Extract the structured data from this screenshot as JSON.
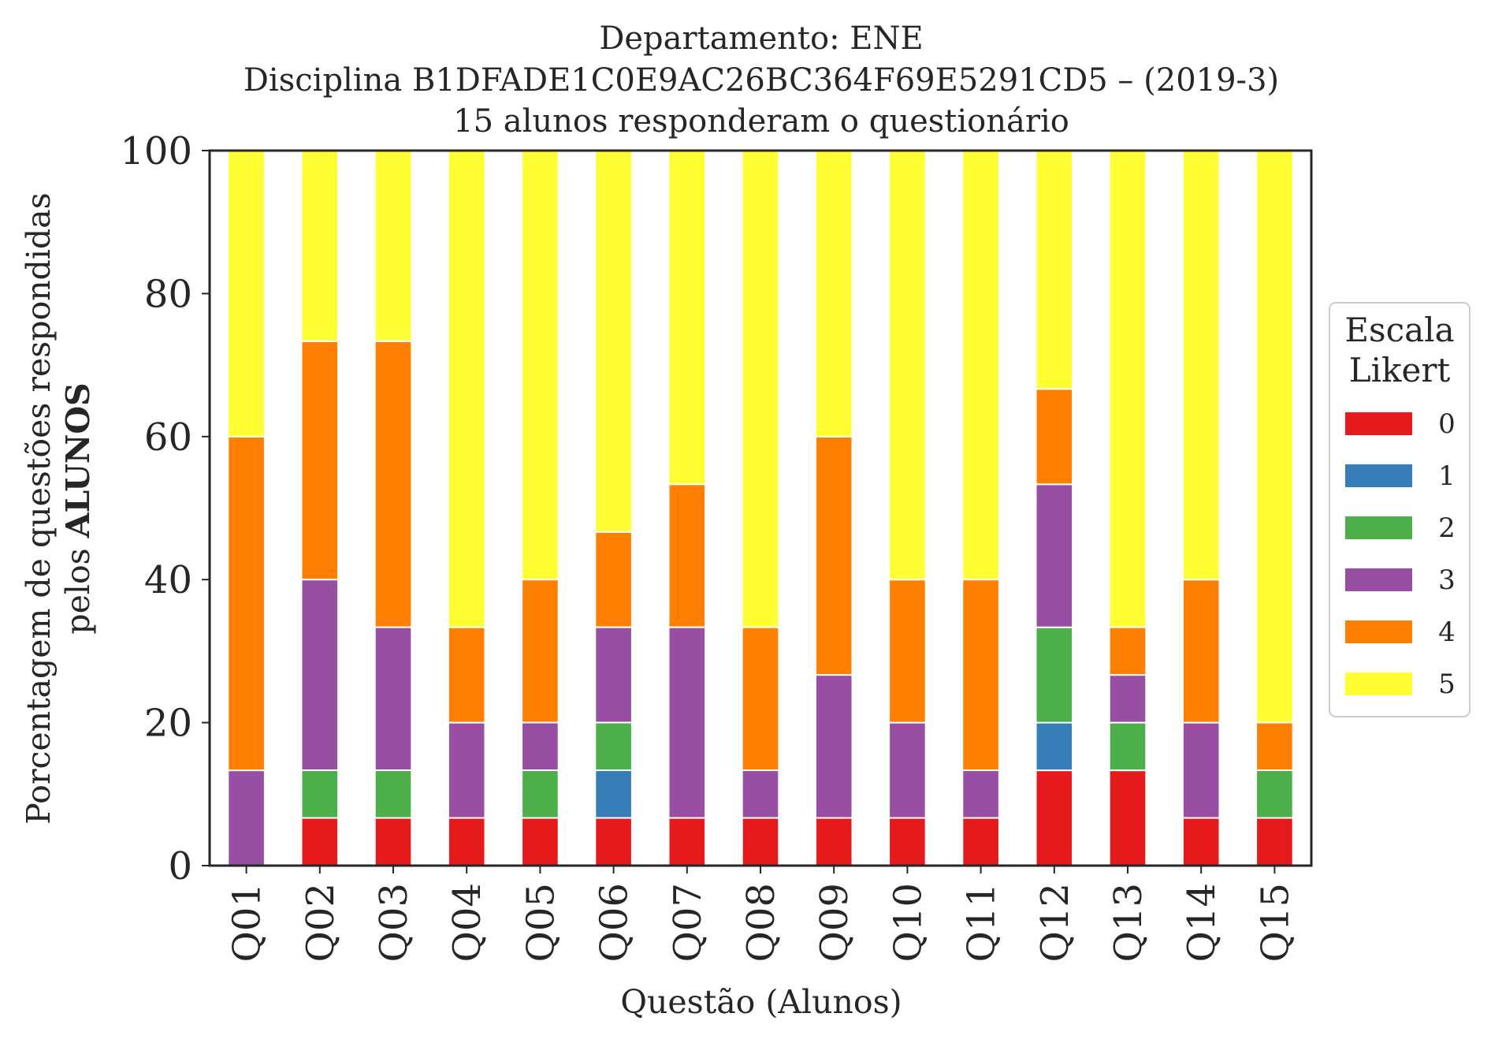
{
  "chart_data": {
    "type": "bar",
    "stacked": true,
    "title_lines": [
      "Departamento: ENE",
      "Disciplina B1DFADE1C0E9AC26BC364F69E5291CD5 – (2019-3)",
      "15 alunos responderam o questionário"
    ],
    "xlabel": "Questão (Alunos)",
    "ylabel_line1": "Porcentagem de questões respondidas",
    "ylabel_line2_prefix": "pelos ",
    "ylabel_line2_bold": "ALUNOS",
    "ylim": [
      0,
      100
    ],
    "yticks": [
      "0",
      "20",
      "40",
      "60",
      "80",
      "100"
    ],
    "categories": [
      "Q01",
      "Q02",
      "Q03",
      "Q04",
      "Q05",
      "Q06",
      "Q07",
      "Q08",
      "Q09",
      "Q10",
      "Q11",
      "Q12",
      "Q13",
      "Q14",
      "Q15"
    ],
    "legend": {
      "title_lines": [
        "Escala",
        "Likert"
      ],
      "placement": "right-center"
    },
    "grid": false,
    "series": [
      {
        "name": "0",
        "color": "#e41a1c",
        "values": [
          0,
          6.67,
          6.67,
          6.67,
          6.67,
          6.67,
          6.67,
          6.67,
          6.67,
          6.67,
          6.67,
          13.33,
          13.33,
          6.67,
          6.67
        ]
      },
      {
        "name": "1",
        "color": "#377eb8",
        "values": [
          0,
          0,
          0,
          0,
          0,
          6.67,
          0,
          0,
          0,
          0,
          0,
          6.67,
          0,
          0,
          0
        ]
      },
      {
        "name": "2",
        "color": "#4daf4a",
        "values": [
          0,
          6.67,
          6.67,
          0,
          6.67,
          6.67,
          0,
          0,
          0,
          0,
          0,
          13.33,
          6.67,
          0,
          6.67
        ]
      },
      {
        "name": "3",
        "color": "#984ea3",
        "values": [
          13.33,
          26.67,
          20,
          13.33,
          6.67,
          13.33,
          26.67,
          6.67,
          20,
          13.33,
          6.67,
          20,
          6.67,
          13.33,
          0
        ]
      },
      {
        "name": "4",
        "color": "#ff7f00",
        "values": [
          46.67,
          33.33,
          40,
          13.33,
          20,
          13.33,
          20,
          20,
          33.33,
          20,
          26.67,
          13.33,
          6.67,
          20,
          6.67
        ]
      },
      {
        "name": "5",
        "color": "#ffff33",
        "values": [
          40,
          26.67,
          26.67,
          66.67,
          60,
          53.33,
          46.67,
          66.67,
          40,
          60,
          60,
          33.33,
          66.67,
          60,
          80
        ]
      }
    ]
  }
}
